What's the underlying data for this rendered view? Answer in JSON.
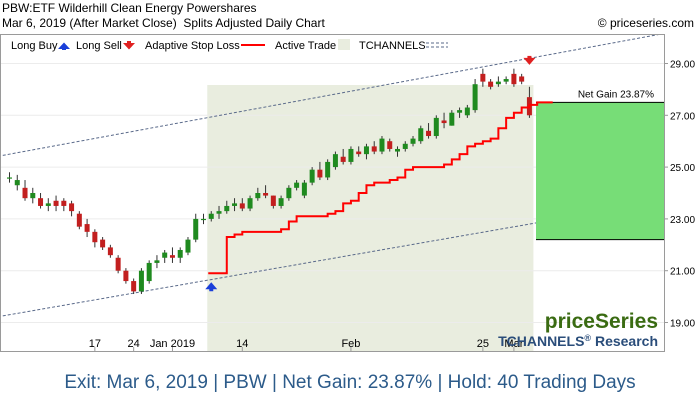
{
  "header": {
    "ticker_line": "PBW:ETF Wilderhill Clean Energy Powershares",
    "date_line": "Mar 6, 2019 (After Market Close)",
    "chart_kind": "Splits Adjusted Daily Chart",
    "copyright": "© priceseries.com"
  },
  "legend": {
    "long_buy": "Long Buy",
    "long_sell": "Long Sell",
    "adaptive_stop": "Adaptive Stop Loss",
    "active_trade": "Active Trade",
    "tchannels": "TCHANNELS"
  },
  "brand": {
    "logo": "priceSeries",
    "research_prefix": "TCHANNELS",
    "registered": "®",
    "research_suffix": " Research"
  },
  "footer": {
    "text": "Exit: Mar 6, 2019 | PBW | Net Gain: 23.87% | Hold: 40 Trading Days"
  },
  "colors": {
    "up": "#1f8a1f",
    "down": "#c21f1f",
    "stop": "#ff0000",
    "active": "#e9eddf",
    "gain": "#77dd77",
    "buy_arrow": "#1a3fd9",
    "sell_arrow": "#e02020",
    "channel": "#5a6a8a",
    "footer": "#2c5b8a"
  },
  "chart_data": {
    "type": "candlestick",
    "ylim": [
      17.9,
      30.1
    ],
    "y_ticks": [
      19,
      21,
      23,
      25,
      27,
      29
    ],
    "y_tick_labels": [
      "19.00",
      "21.00",
      "23.00",
      "25.00",
      "27.00",
      "29.00"
    ],
    "x_ticks": [
      {
        "label": "17",
        "i": 11
      },
      {
        "label": "24",
        "i": 16
      },
      {
        "label": "Jan 2019",
        "i": 21
      },
      {
        "label": "14",
        "i": 30
      },
      {
        "label": "Feb",
        "i": 44
      },
      {
        "label": "25",
        "i": 61
      },
      {
        "label": "Mar",
        "i": 65
      }
    ],
    "candles": [
      {
        "o": 24.6,
        "h": 24.8,
        "l": 24.4,
        "c": 24.6
      },
      {
        "o": 24.3,
        "h": 24.7,
        "l": 24.1,
        "c": 24.5
      },
      {
        "o": 24.2,
        "h": 24.5,
        "l": 23.7,
        "c": 23.8
      },
      {
        "o": 23.8,
        "h": 24.2,
        "l": 23.6,
        "c": 24.0
      },
      {
        "o": 23.8,
        "h": 24.0,
        "l": 23.4,
        "c": 23.5
      },
      {
        "o": 23.5,
        "h": 23.8,
        "l": 23.3,
        "c": 23.6
      },
      {
        "o": 23.7,
        "h": 23.9,
        "l": 23.3,
        "c": 23.5
      },
      {
        "o": 23.7,
        "h": 23.8,
        "l": 23.3,
        "c": 23.5
      },
      {
        "o": 23.6,
        "h": 23.7,
        "l": 23.1,
        "c": 23.3
      },
      {
        "o": 23.2,
        "h": 23.3,
        "l": 22.6,
        "c": 22.7
      },
      {
        "o": 22.8,
        "h": 23.0,
        "l": 22.3,
        "c": 22.5
      },
      {
        "o": 22.5,
        "h": 22.6,
        "l": 21.9,
        "c": 22.1
      },
      {
        "o": 22.2,
        "h": 22.3,
        "l": 21.8,
        "c": 21.9
      },
      {
        "o": 21.9,
        "h": 22.0,
        "l": 21.5,
        "c": 21.6
      },
      {
        "o": 21.5,
        "h": 21.6,
        "l": 20.9,
        "c": 21.0
      },
      {
        "o": 21.0,
        "h": 21.1,
        "l": 20.5,
        "c": 20.6
      },
      {
        "o": 20.6,
        "h": 20.7,
        "l": 20.1,
        "c": 20.2
      },
      {
        "o": 20.2,
        "h": 21.1,
        "l": 20.1,
        "c": 21.0
      },
      {
        "o": 20.6,
        "h": 21.4,
        "l": 20.5,
        "c": 21.3
      },
      {
        "o": 21.3,
        "h": 21.6,
        "l": 21.1,
        "c": 21.4
      },
      {
        "o": 21.5,
        "h": 21.8,
        "l": 21.3,
        "c": 21.7
      },
      {
        "o": 21.6,
        "h": 21.9,
        "l": 21.3,
        "c": 21.5
      },
      {
        "o": 21.5,
        "h": 21.9,
        "l": 21.3,
        "c": 21.8
      },
      {
        "o": 21.7,
        "h": 22.3,
        "l": 21.6,
        "c": 22.2
      },
      {
        "o": 22.2,
        "h": 23.2,
        "l": 22.1,
        "c": 23.0
      },
      {
        "o": 23.0,
        "h": 23.2,
        "l": 22.8,
        "c": 23.0
      },
      {
        "o": 23.0,
        "h": 23.3,
        "l": 22.9,
        "c": 23.2
      },
      {
        "o": 23.2,
        "h": 23.5,
        "l": 23.0,
        "c": 23.3
      },
      {
        "o": 23.3,
        "h": 23.7,
        "l": 23.2,
        "c": 23.5
      },
      {
        "o": 23.5,
        "h": 23.8,
        "l": 23.3,
        "c": 23.6
      },
      {
        "o": 23.6,
        "h": 23.8,
        "l": 23.3,
        "c": 23.4
      },
      {
        "o": 23.4,
        "h": 23.9,
        "l": 23.3,
        "c": 23.8
      },
      {
        "o": 23.8,
        "h": 24.2,
        "l": 23.7,
        "c": 24.0
      },
      {
        "o": 24.0,
        "h": 24.3,
        "l": 23.8,
        "c": 23.9
      },
      {
        "o": 23.9,
        "h": 23.9,
        "l": 23.4,
        "c": 23.5
      },
      {
        "o": 23.5,
        "h": 23.9,
        "l": 23.4,
        "c": 23.8
      },
      {
        "o": 23.8,
        "h": 24.3,
        "l": 23.7,
        "c": 24.2
      },
      {
        "o": 24.2,
        "h": 24.5,
        "l": 24.1,
        "c": 24.4
      },
      {
        "o": 23.9,
        "h": 24.5,
        "l": 23.8,
        "c": 24.4
      },
      {
        "o": 24.4,
        "h": 25.0,
        "l": 24.3,
        "c": 24.9
      },
      {
        "o": 24.9,
        "h": 25.2,
        "l": 24.5,
        "c": 24.6
      },
      {
        "o": 24.6,
        "h": 25.3,
        "l": 24.5,
        "c": 25.2
      },
      {
        "o": 25.0,
        "h": 25.6,
        "l": 24.9,
        "c": 25.5
      },
      {
        "o": 25.4,
        "h": 25.7,
        "l": 25.1,
        "c": 25.2
      },
      {
        "o": 25.2,
        "h": 25.8,
        "l": 25.1,
        "c": 25.7
      },
      {
        "o": 25.6,
        "h": 25.8,
        "l": 25.4,
        "c": 25.5
      },
      {
        "o": 25.5,
        "h": 25.9,
        "l": 25.3,
        "c": 25.8
      },
      {
        "o": 25.8,
        "h": 26.0,
        "l": 25.5,
        "c": 25.6
      },
      {
        "o": 25.6,
        "h": 26.2,
        "l": 25.5,
        "c": 26.1
      },
      {
        "o": 26.0,
        "h": 26.1,
        "l": 25.6,
        "c": 25.7
      },
      {
        "o": 25.6,
        "h": 25.8,
        "l": 25.4,
        "c": 25.7
      },
      {
        "o": 25.7,
        "h": 26.0,
        "l": 25.6,
        "c": 25.9
      },
      {
        "o": 25.9,
        "h": 26.2,
        "l": 25.8,
        "c": 26.1
      },
      {
        "o": 26.0,
        "h": 26.6,
        "l": 25.9,
        "c": 26.5
      },
      {
        "o": 26.4,
        "h": 26.7,
        "l": 26.1,
        "c": 26.2
      },
      {
        "o": 26.2,
        "h": 27.0,
        "l": 26.1,
        "c": 26.9
      },
      {
        "o": 26.8,
        "h": 27.1,
        "l": 26.5,
        "c": 26.7
      },
      {
        "o": 26.6,
        "h": 27.2,
        "l": 26.6,
        "c": 27.1
      },
      {
        "o": 27.1,
        "h": 27.3,
        "l": 26.9,
        "c": 27.2
      },
      {
        "o": 27.0,
        "h": 27.4,
        "l": 26.9,
        "c": 27.3
      },
      {
        "o": 27.2,
        "h": 28.4,
        "l": 27.1,
        "c": 28.2
      },
      {
        "o": 28.6,
        "h": 28.8,
        "l": 28.1,
        "c": 28.3
      },
      {
        "o": 28.3,
        "h": 28.4,
        "l": 28.0,
        "c": 28.1
      },
      {
        "o": 28.2,
        "h": 28.5,
        "l": 28.1,
        "c": 28.3
      },
      {
        "o": 28.3,
        "h": 28.5,
        "l": 28.2,
        "c": 28.4
      },
      {
        "o": 28.6,
        "h": 28.8,
        "l": 28.1,
        "c": 28.2
      },
      {
        "o": 28.5,
        "h": 28.6,
        "l": 28.2,
        "c": 28.3
      },
      {
        "o": 27.7,
        "h": 28.1,
        "l": 26.9,
        "c": 27.0
      }
    ],
    "stop_loss": {
      "start_index": 26,
      "values": [
        20.9,
        20.9,
        22.3,
        22.4,
        22.5,
        22.5,
        22.5,
        22.5,
        22.5,
        22.6,
        22.9,
        23.1,
        23.1,
        23.1,
        23.1,
        23.2,
        23.3,
        23.6,
        23.7,
        24.0,
        24.3,
        24.4,
        24.4,
        24.5,
        24.6,
        24.9,
        25.0,
        25.0,
        25.0,
        25.0,
        25.1,
        25.3,
        25.5,
        25.8,
        25.9,
        26.0,
        26.1,
        26.5,
        26.9,
        27.1,
        27.3,
        27.4,
        27.5,
        27.5,
        27.5
      ]
    },
    "channel_upper": [
      [
        0,
        25.5
      ],
      [
        67,
        29.2
      ]
    ],
    "channel_lower": [
      [
        0,
        19.3
      ],
      [
        67,
        22.8
      ]
    ],
    "active_trade": {
      "start_index": 26,
      "end_index": 67
    },
    "entry": {
      "index": 26,
      "price": 20.4
    },
    "exit": {
      "index": 67,
      "price": 29.1
    },
    "net_gain": {
      "label": "Net Gain 23.87%",
      "from": 22.2,
      "to": 27.5
    }
  }
}
